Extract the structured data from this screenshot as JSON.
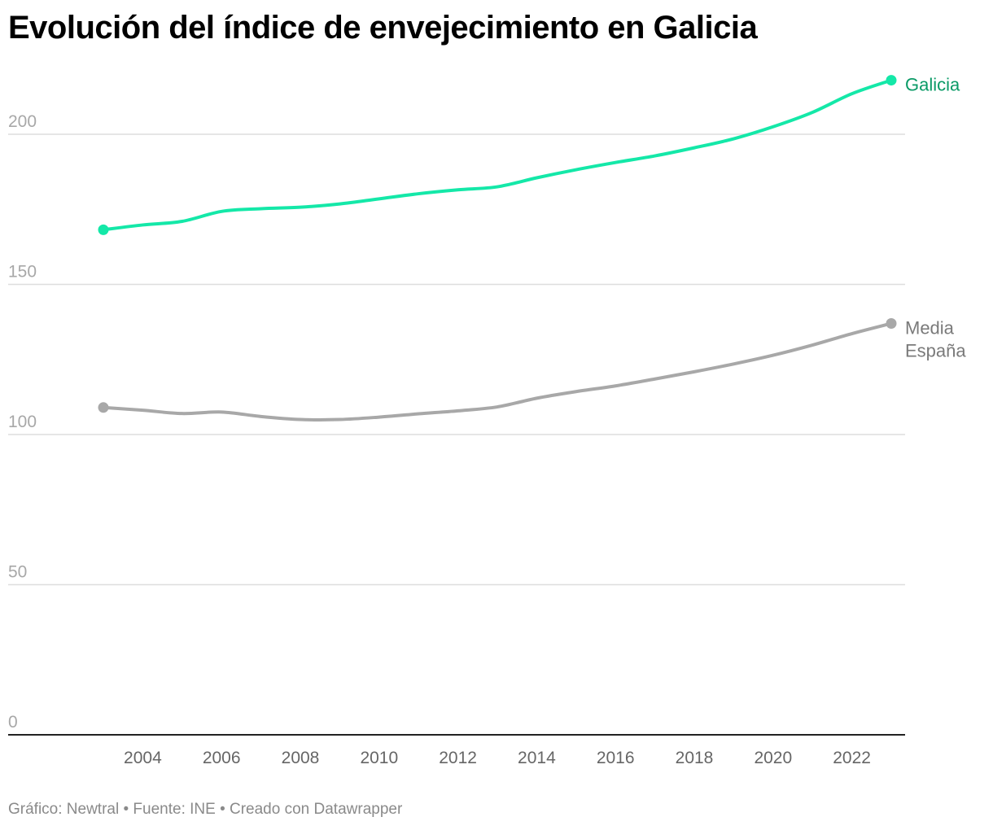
{
  "title": "Evolución del índice de envejecimiento en Galicia",
  "footer": "Gráfico: Newtral • Fuente: INE • Creado con Datawrapper",
  "chart_data": {
    "type": "line",
    "title": "Evolución del índice de envejecimiento en Galicia",
    "xlabel": "",
    "ylabel": "",
    "x": [
      2003,
      2004,
      2005,
      2006,
      2007,
      2008,
      2009,
      2010,
      2011,
      2012,
      2013,
      2014,
      2015,
      2016,
      2017,
      2018,
      2019,
      2020,
      2021,
      2022,
      2023
    ],
    "x_ticks": [
      2004,
      2006,
      2008,
      2010,
      2012,
      2014,
      2016,
      2018,
      2020,
      2022
    ],
    "y_ticks": [
      0,
      50,
      100,
      150,
      200
    ],
    "ylim": [
      0,
      200
    ],
    "grid": true,
    "legend": "direct labels at line ends",
    "series": [
      {
        "name": "Galicia",
        "color": "#14e8a8",
        "label_color": "#0a9a66",
        "values": [
          168.2,
          169.8,
          171.0,
          174.3,
          175.2,
          175.7,
          176.8,
          178.5,
          180.2,
          181.5,
          182.5,
          185.5,
          188.2,
          190.6,
          192.8,
          195.5,
          198.5,
          202.5,
          207.3,
          213.5,
          218.0
        ]
      },
      {
        "name": "Media España",
        "color": "#a8a8a8",
        "label_color": "#7a7a7a",
        "values": [
          109.0,
          108.1,
          107.0,
          107.5,
          106.0,
          105.0,
          105.0,
          105.8,
          106.9,
          107.9,
          109.2,
          112.1,
          114.3,
          116.2,
          118.5,
          120.9,
          123.5,
          126.4,
          129.8,
          133.6,
          137.0
        ]
      }
    ]
  }
}
